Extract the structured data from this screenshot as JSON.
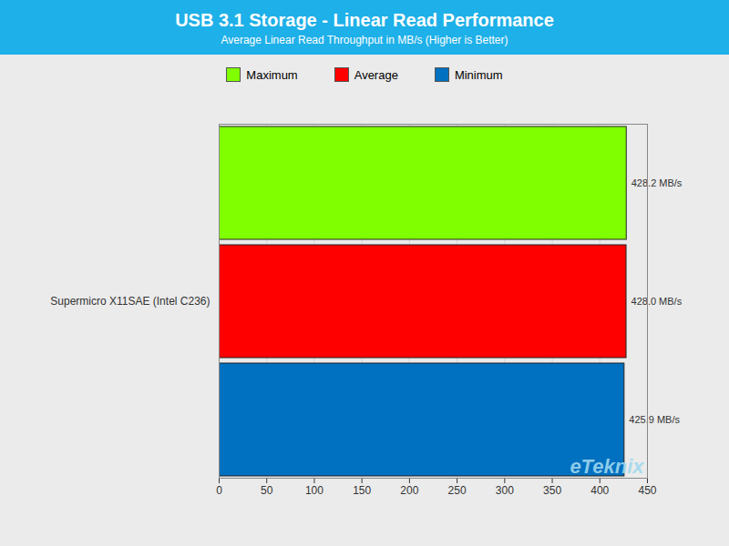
{
  "chart_data": {
    "type": "bar",
    "orientation": "horizontal",
    "title": "USB 3.1 Storage - Linear Read Performance",
    "subtitle": "Average Linear Read Throughput in MB/s (Higher is Better)",
    "categories": [
      "Supermicro X11SAE (Intel C236)"
    ],
    "series": [
      {
        "name": "Maximum",
        "color": "#80FF00",
        "values": [
          428.2
        ],
        "value_labels": [
          "428.2 MB/s"
        ]
      },
      {
        "name": "Average",
        "color": "#FF0000",
        "values": [
          428.0
        ],
        "value_labels": [
          "428.0 MB/s"
        ]
      },
      {
        "name": "Minimum",
        "color": "#0070C0",
        "values": [
          425.9
        ],
        "value_labels": [
          "425.9 MB/s"
        ]
      }
    ],
    "xlim": [
      0,
      450
    ],
    "xticks": [
      0,
      50,
      100,
      150,
      200,
      250,
      300,
      350,
      400,
      450
    ],
    "grid": true,
    "data_labels": true,
    "legend": "top",
    "annotations": [
      "eTeknix"
    ]
  }
}
